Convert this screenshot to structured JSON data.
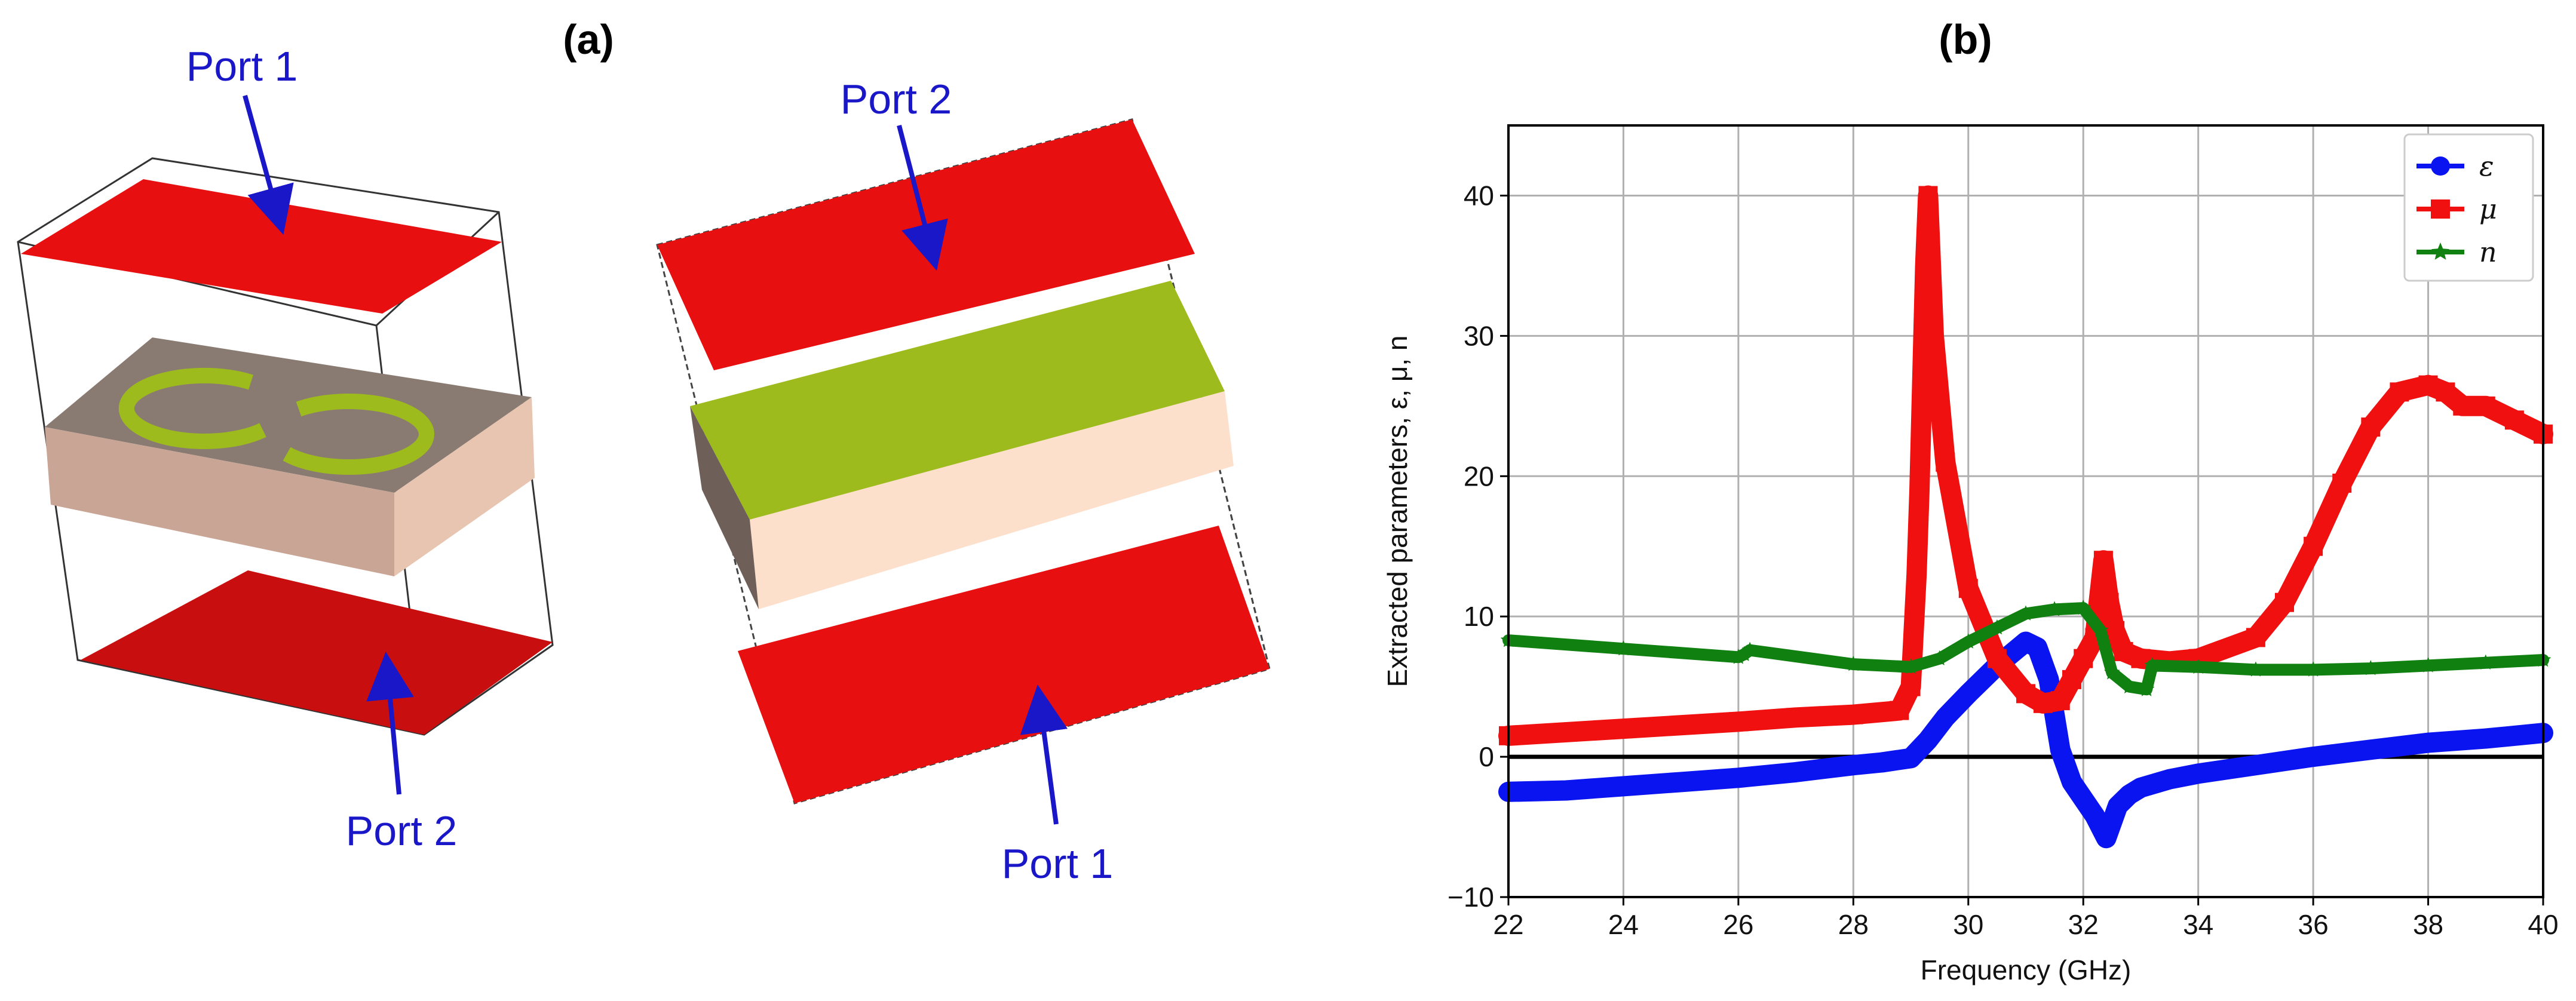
{
  "panels": {
    "a": {
      "label": "(a)"
    },
    "b": {
      "label": "(b)"
    }
  },
  "diagram_left": {
    "port_top": "Port 1",
    "port_bottom": "Port 2"
  },
  "diagram_right": {
    "port_top": "Port 2",
    "port_bottom": "Port 1"
  },
  "colors": {
    "port_red": "#e80f10",
    "substrate": "#e8c5b0",
    "substrate_top": "#8a7b72",
    "copper_green": "#9dbb1c",
    "arrow_blue": "#1a17c8",
    "eps": "#0a14f0",
    "mu": "#f01010",
    "n": "#108010"
  },
  "chart_data": {
    "type": "line",
    "xlabel": "Frequency (GHz)",
    "ylabel": "Extracted parameters, ε, μ, n",
    "xlim": [
      22,
      40
    ],
    "ylim": [
      -10,
      45
    ],
    "xticks": [
      "22",
      "24",
      "26",
      "28",
      "30",
      "32",
      "34",
      "36",
      "38",
      "40"
    ],
    "yticks": [
      "−10",
      "0",
      "10",
      "20",
      "30",
      "40"
    ],
    "grid": true,
    "legend_position": "top-right",
    "series": [
      {
        "name": "ε",
        "marker": "circle",
        "x": [
          22,
          23,
          24,
          25,
          26,
          27,
          28,
          28.5,
          29,
          29.3,
          29.6,
          30,
          30.5,
          31,
          31.2,
          31.4,
          31.6,
          31.8,
          32,
          32.2,
          32.4,
          32.6,
          32.8,
          33,
          33.5,
          34,
          35,
          36,
          37,
          38,
          39,
          40
        ],
        "y": [
          -2.5,
          -2.4,
          -2.1,
          -1.8,
          -1.5,
          -1.1,
          -0.6,
          -0.4,
          -0.1,
          1.2,
          2.8,
          4.5,
          6.5,
          8.2,
          7.8,
          5.5,
          0.5,
          -1.8,
          -3.0,
          -4.2,
          -5.8,
          -3.5,
          -2.7,
          -2.2,
          -1.6,
          -1.2,
          -0.6,
          0.0,
          0.5,
          1.0,
          1.3,
          1.7
        ]
      },
      {
        "name": "μ",
        "marker": "square",
        "x": [
          22,
          24,
          26,
          27,
          28,
          28.8,
          29.0,
          29.1,
          29.15,
          29.2,
          29.25,
          29.3,
          29.4,
          29.6,
          30,
          30.5,
          31,
          31.3,
          31.6,
          31.8,
          32,
          32.2,
          32.35,
          32.45,
          32.55,
          32.7,
          33,
          33.5,
          34,
          35,
          35.5,
          36,
          36.5,
          37,
          37.5,
          38,
          38.3,
          38.6,
          39,
          39.5,
          40
        ],
        "y": [
          1.5,
          2.0,
          2.5,
          2.8,
          3.0,
          3.3,
          5.0,
          13.0,
          19.0,
          27.0,
          35.0,
          40.0,
          30.0,
          21.0,
          12.0,
          7.0,
          4.5,
          3.8,
          4.0,
          5.5,
          7.0,
          8.5,
          14.0,
          11.0,
          9.0,
          7.5,
          7.0,
          6.8,
          7.0,
          8.5,
          11.0,
          15.0,
          19.5,
          23.5,
          26.0,
          26.5,
          26.0,
          25.0,
          25.0,
          24.0,
          23.0
        ]
      },
      {
        "name": "n",
        "marker": "star",
        "x": [
          22,
          24,
          26,
          26.1,
          26.2,
          28,
          29,
          29.5,
          30,
          30.5,
          31,
          31.5,
          32,
          32.3,
          32.5,
          32.8,
          33.1,
          33.2,
          34,
          35,
          36,
          37,
          38,
          39,
          40
        ],
        "y": [
          8.3,
          7.7,
          7.1,
          7.3,
          7.6,
          6.6,
          6.4,
          7.0,
          8.2,
          9.2,
          10.2,
          10.5,
          10.6,
          9.0,
          6.0,
          5.0,
          4.8,
          6.5,
          6.4,
          6.2,
          6.2,
          6.3,
          6.5,
          6.7,
          6.9
        ]
      }
    ]
  }
}
